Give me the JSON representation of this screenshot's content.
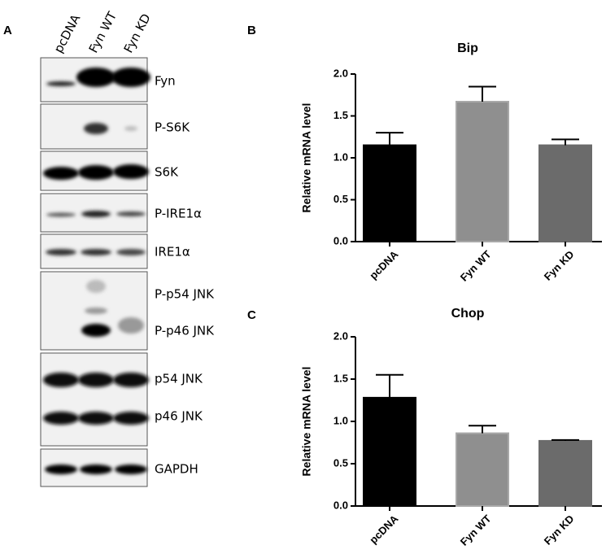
{
  "panel_labels": [
    "A",
    "B",
    "C"
  ],
  "blot": {
    "lanes": [
      "pcDNA",
      "Fyn WT",
      "Fyn KD"
    ],
    "rows": [
      "Fyn",
      "P-S6K",
      "S6K",
      "P-IRE1α",
      "IRE1α",
      "P-p54 JNK",
      "P-p46 JNK",
      "p54 JNK",
      "p46 JNK",
      "GAPDH"
    ]
  },
  "chart_data": [
    {
      "type": "bar",
      "title": "Bip",
      "y_label": "Relative mRNA level",
      "categories": [
        "pcDNA",
        "Fyn WT",
        "Fyn KD"
      ],
      "values": [
        1.15,
        1.67,
        1.15
      ],
      "errors": [
        0.15,
        0.18,
        0.07
      ],
      "colors": [
        "#000000",
        "#8f8f8f",
        "#6b6b6b"
      ],
      "ylim": [
        0,
        2
      ],
      "yticks": [
        {
          "value": 0,
          "label": "0.0"
        },
        0.5,
        {
          "value": 1,
          "label": "1.0"
        },
        1.5,
        {
          "value": 2,
          "label": "2.0"
        }
      ]
    },
    {
      "type": "bar",
      "title": "Chop",
      "y_label": "Relative mRNA level",
      "categories": [
        "pcDNA",
        "Fyn WT",
        "Fyn KD"
      ],
      "values": [
        1.28,
        0.86,
        0.77
      ],
      "errors": [
        0.27,
        0.09,
        0.01
      ],
      "colors": [
        "#000000",
        "#8f8f8f",
        "#6b6b6b"
      ],
      "ylim": [
        0,
        2
      ],
      "yticks": [
        {
          "value": 0,
          "label": "0.0"
        },
        0.5,
        {
          "value": 1,
          "label": "1.0"
        },
        1.5,
        {
          "value": 2,
          "label": "2.0"
        }
      ]
    }
  ]
}
